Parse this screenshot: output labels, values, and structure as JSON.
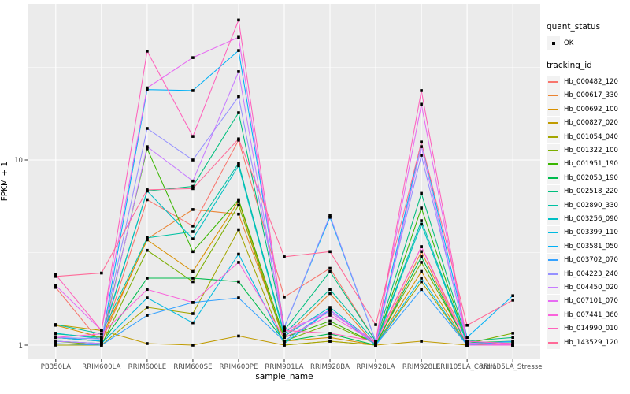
{
  "figure": {
    "x_axis_title": "sample_name",
    "y_axis_title": "FPKM + 1"
  },
  "legend": {
    "quant_status_title": "quant_status",
    "quant_status_items": [
      {
        "label": "OK",
        "marker": "black-square-point"
      }
    ],
    "tracking_id_title": "tracking_id"
  },
  "colors": {
    "panel_bg": "#EBEBEB",
    "grid": "#FFFFFF",
    "tick": "#333333",
    "tick_label": "#4D4D4D",
    "marker": "#000000",
    "legend_key_bg": "#F2F2F2"
  },
  "chart_data": {
    "type": "line",
    "title": "",
    "xlabel": "sample_name",
    "ylabel": "FPKM + 1",
    "y_scale": "log10",
    "ylim": [
      0.85,
      68
    ],
    "y_ticks": [
      {
        "value": 1,
        "label": "1"
      },
      {
        "value": 10,
        "label": "10"
      }
    ],
    "y_minor_ticks": [
      3.162,
      31.62
    ],
    "grid": true,
    "legend_position": "right",
    "marker_shape": "square",
    "categories": [
      "PB350LA",
      "RRIM600LA",
      "RRIM600LE",
      "RRIM600SE",
      "RRIM600PE",
      "RRIM901LA",
      "RRIM928BA",
      "RRIM928LA",
      "RRIM928LE",
      "RRII105LA_Control",
      "RRII105LA_Stressed"
    ],
    "series": [
      {
        "name": "Hb_000482_120",
        "color": "#F8766D",
        "values": [
          2.05,
          1.02,
          6.1,
          4.4,
          12.8,
          1.82,
          2.6,
          1.05,
          3.4,
          1.05,
          1.0
        ]
      },
      {
        "name": "Hb_000617_330",
        "color": "#EA8331",
        "values": [
          1.1,
          1.05,
          3.75,
          5.4,
          5.1,
          1.1,
          1.9,
          1.0,
          3.2,
          1.0,
          1.0
        ]
      },
      {
        "name": "Hb_000692_100",
        "color": "#D89000",
        "values": [
          1.28,
          1.1,
          3.7,
          2.5,
          6.0,
          1.05,
          1.1,
          1.0,
          2.5,
          1.0,
          1.0
        ]
      },
      {
        "name": "Hb_000827_020",
        "color": "#C09B00",
        "values": [
          1.29,
          1.2,
          1.02,
          1.0,
          1.12,
          1.0,
          1.05,
          1.0,
          1.05,
          1.0,
          1.02
        ]
      },
      {
        "name": "Hb_001054_040",
        "color": "#A3A500",
        "values": [
          1.0,
          1.0,
          1.6,
          1.48,
          4.2,
          1.0,
          1.05,
          1.0,
          2.2,
          1.0,
          1.0
        ]
      },
      {
        "name": "Hb_001322_100",
        "color": "#7CAE00",
        "values": [
          1.05,
          1.0,
          3.25,
          2.2,
          5.7,
          1.05,
          1.3,
          1.02,
          2.8,
          1.02,
          1.16
        ]
      },
      {
        "name": "Hb_001951_190",
        "color": "#39B600",
        "values": [
          1.1,
          1.05,
          11.5,
          3.2,
          6.1,
          1.1,
          1.35,
          1.02,
          5.5,
          1.03,
          1.05
        ]
      },
      {
        "name": "Hb_002053_190",
        "color": "#00BB4E",
        "values": [
          1.05,
          1.02,
          2.3,
          2.3,
          2.2,
          1.05,
          1.15,
          1.0,
          3.0,
          1.0,
          1.0
        ]
      },
      {
        "name": "Hb_002518_220",
        "color": "#00BF7D",
        "values": [
          1.15,
          1.1,
          6.8,
          7.2,
          18.0,
          1.2,
          2.5,
          1.05,
          6.6,
          1.05,
          1.1
        ]
      },
      {
        "name": "Hb_002890_330",
        "color": "#00C1A3",
        "values": [
          1.29,
          1.15,
          3.8,
          4.1,
          9.6,
          1.15,
          2.0,
          1.03,
          4.7,
          1.03,
          1.04
        ]
      },
      {
        "name": "Hb_003256_090",
        "color": "#00BFC4",
        "values": [
          1.16,
          1.08,
          6.8,
          3.75,
          9.3,
          1.12,
          1.6,
          1.02,
          4.5,
          1.02,
          1.05
        ]
      },
      {
        "name": "Hb_003399_110",
        "color": "#00BAE0",
        "values": [
          1.05,
          1.02,
          1.8,
          1.32,
          3.1,
          1.02,
          1.55,
          1.0,
          2.3,
          1.0,
          1.0
        ]
      },
      {
        "name": "Hb_003581_050",
        "color": "#00B0F6",
        "values": [
          1.1,
          1.05,
          24.0,
          23.7,
          39.0,
          1.25,
          4.9,
          1.05,
          12.5,
          1.1,
          1.85
        ]
      },
      {
        "name": "Hb_003702_070",
        "color": "#35A2FF",
        "values": [
          1.02,
          1.0,
          1.45,
          1.7,
          1.8,
          1.05,
          1.55,
          1.0,
          2.0,
          1.0,
          1.05
        ]
      },
      {
        "name": "Hb_004223_240",
        "color": "#9590FF",
        "values": [
          1.1,
          1.08,
          14.8,
          10.0,
          22.0,
          1.25,
          5.0,
          1.05,
          10.6,
          1.05,
          1.02
        ]
      },
      {
        "name": "Hb_004450_020",
        "color": "#C77CFF",
        "values": [
          1.05,
          1.02,
          11.8,
          7.7,
          30.0,
          1.15,
          1.55,
          1.02,
          11.8,
          1.02,
          1.0
        ]
      },
      {
        "name": "Hb_007101_070",
        "color": "#E76BF3",
        "values": [
          2.1,
          1.2,
          24.5,
          35.7,
          46.0,
          1.2,
          1.5,
          1.05,
          20.0,
          1.03,
          1.0
        ]
      },
      {
        "name": "Hb_007441_360",
        "color": "#FA62DB",
        "values": [
          1.1,
          1.15,
          2.0,
          1.7,
          2.8,
          1.1,
          1.45,
          1.03,
          3.4,
          1.0,
          1.0
        ]
      },
      {
        "name": "Hb_014990_010",
        "color": "#FF62BC",
        "values": [
          2.4,
          1.2,
          38.7,
          13.4,
          57.0,
          1.2,
          1.16,
          1.05,
          23.7,
          1.05,
          1.02
        ]
      },
      {
        "name": "Hb_143529_120",
        "color": "#FF6A98",
        "values": [
          2.35,
          2.45,
          6.9,
          7.0,
          13.0,
          3.0,
          3.2,
          1.29,
          12.5,
          1.28,
          1.75
        ]
      }
    ]
  }
}
